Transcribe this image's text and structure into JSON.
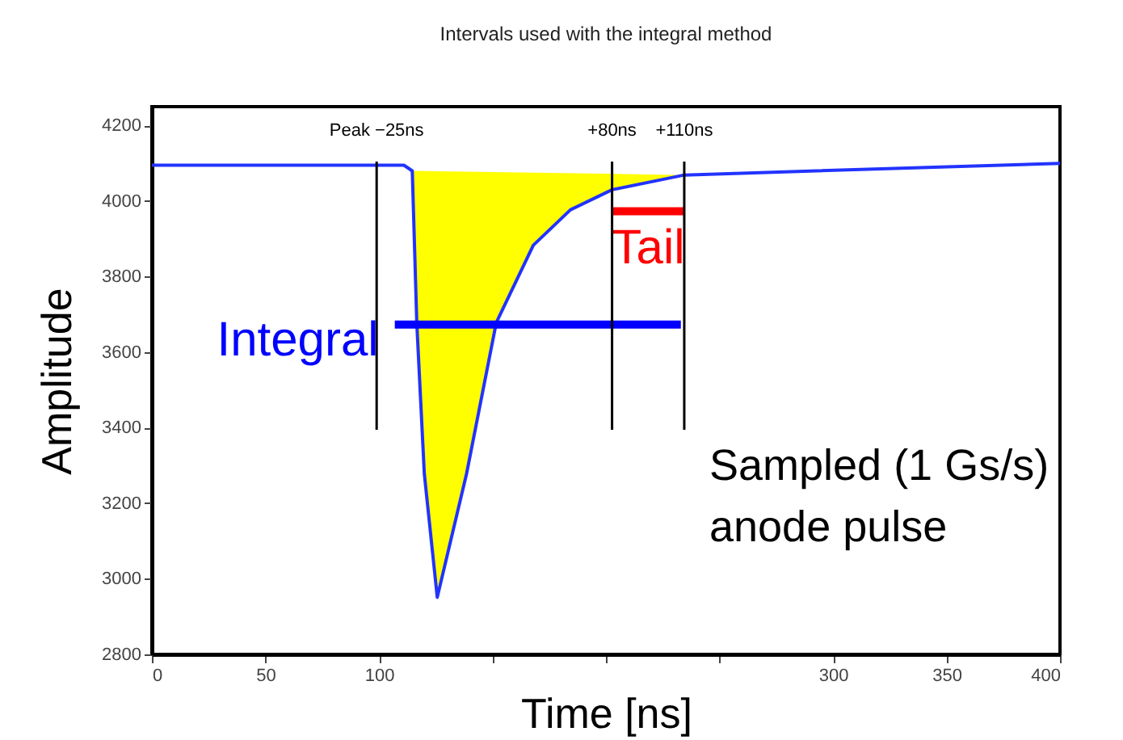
{
  "chart_data": {
    "type": "line",
    "title": "Intervals used with the integral method",
    "xlabel": "Time [ns]",
    "ylabel": "Amplitude",
    "xlim": [
      0,
      400
    ],
    "xticks": [
      0,
      50,
      100,
      {
        "value": 150,
        "label": null
      },
      {
        "value": 200,
        "label": null
      },
      {
        "value": 250,
        "label": null
      },
      300,
      350,
      400
    ],
    "ylim": [
      2800,
      4250
    ],
    "yticks": [
      2800,
      3000,
      3200,
      3400,
      3600,
      3800,
      4000,
      4200
    ],
    "grid": false,
    "marker": "none",
    "line_style": "solid",
    "series": [
      {
        "type": "area",
        "color": "#ffff00",
        "x": [
          114.7,
          116.7,
          120,
          125.7,
          138.6,
          151.7,
          168,
          184.4,
          202.7,
          234.5
        ],
        "values": [
          4080,
          3675,
          3278,
          2951,
          3278,
          3678,
          3883,
          3977,
          4030,
          4069
        ]
      },
      {
        "color": "#2233ff",
        "x": [
          0,
          111,
          114.7,
          116.7,
          120,
          125.7,
          138.6,
          151.7,
          168,
          184.4,
          202.7,
          234.5,
          400
        ],
        "values": [
          4095,
          4095,
          4080,
          3675,
          3278,
          2951,
          3278,
          3678,
          3883,
          3977,
          4030,
          4069,
          4100
        ]
      },
      {
        "type": "line",
        "name": "Tail",
        "color": "#ff0000",
        "x": [
          202.7,
          234.5
        ],
        "values": [
          3973,
          3973
        ]
      },
      {
        "type": "line",
        "name": "Integral",
        "color": "#0000ff",
        "x": [
          107,
          233
        ],
        "values": [
          3673,
          3673
        ]
      }
    ],
    "ref_lines": [
      {
        "axis": "x",
        "value": 99,
        "label": "Peak −25ns",
        "color": "#000000"
      },
      {
        "axis": "x",
        "value": 202.7,
        "label": "+80ns",
        "color": "#000000"
      },
      {
        "axis": "x",
        "value": 234.5,
        "label": "+110ns",
        "color": "#000000"
      }
    ],
    "annotations": [
      "Sampled (1 Gs/s)\nanode pulse"
    ]
  }
}
